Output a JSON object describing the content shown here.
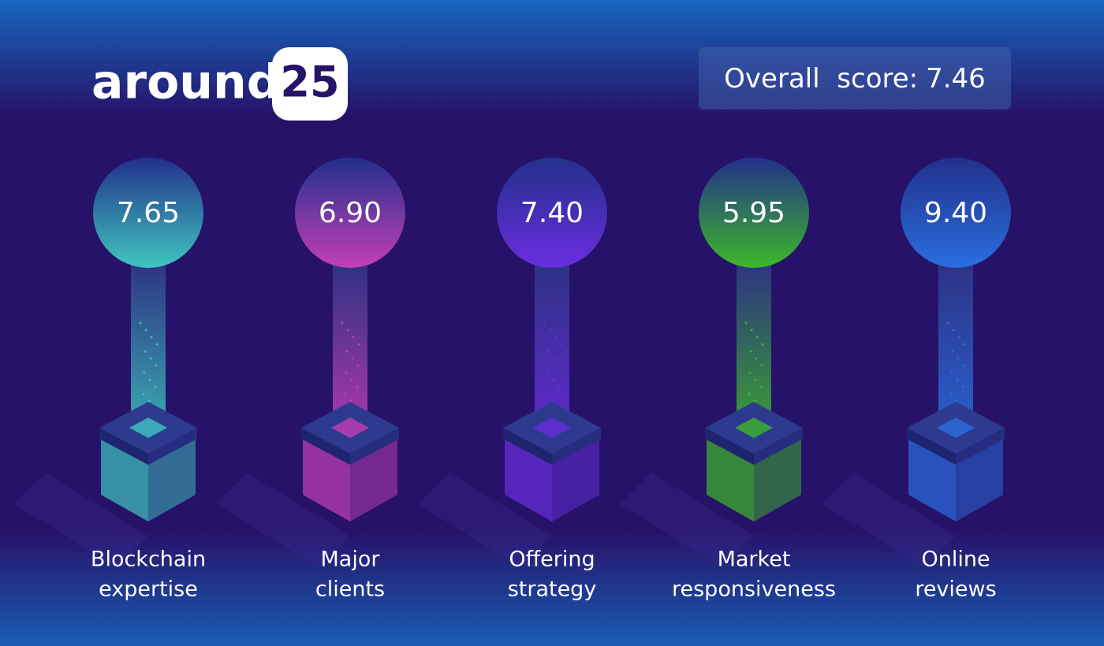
{
  "logo": {
    "word": "around",
    "badge": "25"
  },
  "overall": {
    "label": "Overall  score:",
    "value": "7.46"
  },
  "items": [
    {
      "score": "7.65",
      "label": [
        "Blockchain",
        "expertise"
      ],
      "color": "#3fc6c0"
    },
    {
      "score": "6.90",
      "label": [
        "Major",
        "clients"
      ],
      "color": "#c43fb8"
    },
    {
      "score": "7.40",
      "label": [
        "Offering",
        "strategy"
      ],
      "color": "#6a2de0"
    },
    {
      "score": "5.95",
      "label": [
        "Market",
        "responsiveness"
      ],
      "color": "#3db82a"
    },
    {
      "score": "9.40",
      "label": [
        "Online",
        "reviews"
      ],
      "color": "#2a6ee0"
    }
  ]
}
